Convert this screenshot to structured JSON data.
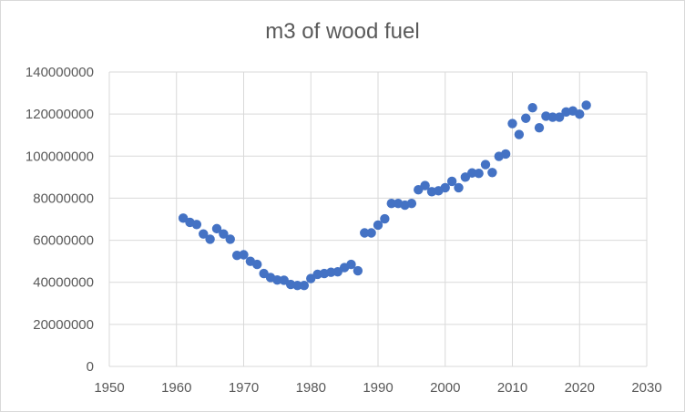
{
  "chart_data": {
    "type": "scatter",
    "title": "m3 of wood fuel",
    "xlabel": "",
    "ylabel": "",
    "xlim": [
      1950,
      2030
    ],
    "ylim": [
      0,
      140000000
    ],
    "x_ticks": [
      1950,
      1960,
      1970,
      1980,
      1990,
      2000,
      2010,
      2020,
      2030
    ],
    "y_ticks": [
      0,
      20000000,
      40000000,
      60000000,
      80000000,
      100000000,
      120000000,
      140000000
    ],
    "grid": true,
    "legend": "none",
    "marker_color": "#4472c4",
    "series": [
      {
        "x": [
          1961,
          1962,
          1963,
          1964,
          1965,
          1966,
          1967,
          1968,
          1969,
          1970,
          1971,
          1972,
          1973,
          1974,
          1975,
          1976,
          1977,
          1978,
          1979,
          1980,
          1981,
          1982,
          1983,
          1984,
          1985,
          1986,
          1987,
          1988,
          1989,
          1990,
          1991,
          1992,
          1993,
          1994,
          1995,
          1996,
          1997,
          1998,
          1999,
          2000,
          2001,
          2002,
          2003,
          2004,
          2005,
          2006,
          2007,
          2008,
          2009,
          2010,
          2011,
          2012,
          2013,
          2014,
          2015,
          2016,
          2017,
          2018,
          2019,
          2020,
          2021
        ],
        "y": [
          70500000,
          68500000,
          67500000,
          63000000,
          60500000,
          65500000,
          63000000,
          60500000,
          52800000,
          53100000,
          50000000,
          48500000,
          44200000,
          42300000,
          41100000,
          41000000,
          39000000,
          38500000,
          38500000,
          41800000,
          43800000,
          44200000,
          44800000,
          45000000,
          47000000,
          48500000,
          45500000,
          63500000,
          63500000,
          67200000,
          70200000,
          77500000,
          77500000,
          76700000,
          77500000,
          84000000,
          86000000,
          83100000,
          83500000,
          85000000,
          88000000,
          85000000,
          90000000,
          92000000,
          91800000,
          96000000,
          92200000,
          99900000,
          101000000,
          115500000,
          110300000,
          118000000,
          123000000,
          113500000,
          119000000,
          118500000,
          118500000,
          121000000,
          121500000,
          120000000,
          124200000
        ]
      }
    ]
  }
}
